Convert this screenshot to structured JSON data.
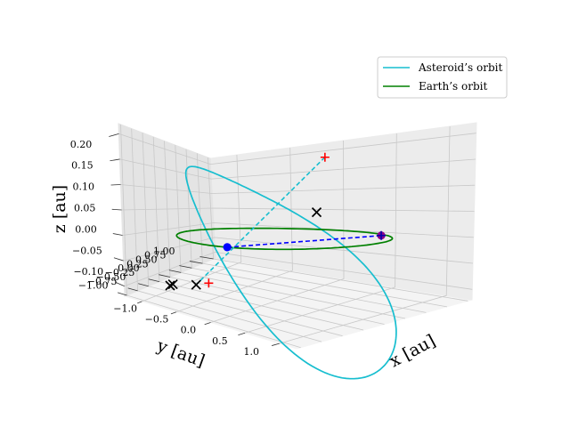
{
  "chart_data": {
    "type": "line",
    "projection": "3d",
    "title": "",
    "xlabel": "x [au]",
    "ylabel": "y [au]",
    "zlabel": "z [au]",
    "xlim": [
      -1.25,
      1.25
    ],
    "ylim": [
      -1.05,
      1.05
    ],
    "zlim": [
      -0.12,
      0.22
    ],
    "x_ticks": [
      "−1.0",
      "−0.5",
      "0.0",
      "0.5",
      "1.0"
    ],
    "y_ticks": [
      "1.00",
      "0.75",
      "0.50",
      "0.25",
      "0.00",
      "−0.25",
      "−0.50",
      "−0.75",
      "−1.00"
    ],
    "z_ticks": [
      "0.20",
      "0.15",
      "0.10",
      "0.05",
      "0.00",
      "−0.05",
      "−0.10"
    ],
    "grid": true,
    "legend_position": "top-right",
    "series": [
      {
        "name": "Asteroid’s orbit",
        "color": "#17becf",
        "kind": "ellipse",
        "a": 1.0,
        "e": 0.2,
        "inclination_deg": 10,
        "ascending_node_deg": 95,
        "perihelion_arg_deg": 55
      },
      {
        "name": "Earth’s orbit",
        "color": "#008000",
        "kind": "circle",
        "radius": 1.0,
        "z": 0.0
      }
    ],
    "markers": [
      {
        "label": "Earth",
        "symbol": "dot",
        "color": "#0000ff",
        "x": 0.18,
        "y": -0.98,
        "z": 0.0
      },
      {
        "label": "Asteroid",
        "symbol": "dot",
        "color": "#8b008b",
        "x": 0.55,
        "y": 0.78,
        "z": 0.0
      },
      {
        "symbol": "plus",
        "color": "#ff0000",
        "x": 0.02,
        "y": 0.73,
        "z": 0.17
      },
      {
        "symbol": "plus",
        "color": "#ff0000",
        "x": -0.05,
        "y": -1.02,
        "z": -0.06
      },
      {
        "symbol": "plus",
        "color": "#0000aa",
        "x": 0.55,
        "y": 0.78,
        "z": 0.0
      },
      {
        "symbol": "cross",
        "color": "#000000",
        "x": -0.45,
        "y": -0.75,
        "z": -0.08
      },
      {
        "symbol": "cross",
        "color": "#000000",
        "x": -0.9,
        "y": -0.55,
        "z": -0.1
      },
      {
        "symbol": "cross",
        "color": "#000000",
        "x": -1.0,
        "y": -0.45,
        "z": -0.11
      },
      {
        "symbol": "cross",
        "color": "#000000",
        "x": 0.3,
        "y": 0.2,
        "z": 0.05
      }
    ],
    "connectors": [
      {
        "from": [
          0.18,
          -0.98,
          0.0
        ],
        "to": [
          0.55,
          0.78,
          0.0
        ],
        "color": "#0000ff",
        "style": "dashed"
      },
      {
        "from": [
          0.02,
          0.73,
          0.17
        ],
        "to": [
          -0.45,
          -0.75,
          -0.08
        ],
        "color": "#17becf",
        "style": "dashed"
      }
    ]
  }
}
